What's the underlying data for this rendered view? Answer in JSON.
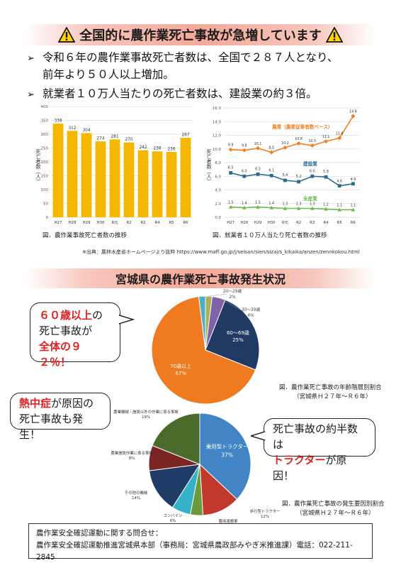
{
  "header1": {
    "title": "全国的に農作業死亡事故が急増しています"
  },
  "bullets": [
    "令和６年の農作業事故死亡者数は、全国で２８７人となり、",
    "前年より５０人以上増加。",
    "就業者１０万人当たりの死亡者数は、建設業の約３倍。"
  ],
  "bullet_marker": "➢",
  "header2": {
    "title": "宮城県の農作業死亡事故発生状況"
  },
  "captions": {
    "bar": "図．農作業事故死亡者数の推移",
    "line": "図．就業者１０万人当たり死亡者数の推移",
    "source": "※出典：農林水産省ホームページより抜粋 https://www.maff.go.jp/j/seisan/sien/sizai/s_kikaika/anzen/zennkokou.html",
    "pie_age": [
      "図．農作業死亡事故の年齢階層別割合",
      "（宮城県Ｈ２７年～Ｒ６年）"
    ],
    "pie_cause": [
      "図．農作業死亡事故の発生要因別割合",
      "（宮城県Ｈ２７年～Ｒ６年）"
    ]
  },
  "bubbles": {
    "age": {
      "l1_red": "６０歳以上",
      "l1_tail": "の",
      "l2": "死亡事故が",
      "l3_red": "全体の９２％！"
    },
    "heat": {
      "l1_red": "熱中症",
      "l1_tail": "が原因の",
      "l2": "死亡事故も発生！"
    },
    "tractor": {
      "l1": "死亡事故の約半数は",
      "l2_red": "トラクター",
      "l2_tail": "が原因！"
    }
  },
  "contact": {
    "line1": "農作業安全確認運動に関する問合せ：",
    "line2": "農作業安全確認運動推進宮城県本部（事務局：宮城県農政部みやぎ米推進課）電話：022-211-2845"
  },
  "colors": {
    "bar": "#f5b800",
    "agri": "#ef8122",
    "construction": "#2c6b8f",
    "all": "#6dbb4a",
    "red": "#e02020"
  },
  "chart_data": [
    {
      "type": "bar",
      "categories": [
        "H27",
        "H28",
        "H29",
        "H30",
        "R元",
        "R2",
        "R3",
        "R4",
        "R5",
        "R6"
      ],
      "values": [
        338,
        312,
        304,
        274,
        281,
        270,
        242,
        238,
        236,
        287
      ],
      "ylabel": "死亡者数（人）",
      "ylim": [
        0,
        400
      ],
      "yticks": [
        0,
        50,
        100,
        150,
        200,
        250,
        300,
        350,
        400
      ],
      "grid": true
    },
    {
      "type": "line",
      "x": [
        "H27",
        "H28",
        "H29",
        "H30",
        "R元",
        "R2",
        "R3",
        "R4",
        "R5",
        "R6"
      ],
      "ylabel": "死亡者数（人）",
      "ylim": [
        0,
        16
      ],
      "yticks": [
        0.0,
        2.0,
        4.0,
        6.0,
        8.0,
        10.0,
        12.0,
        14.0,
        16.0
      ],
      "grid": true,
      "series": [
        {
          "name": "農業（農業従事者数ベース）",
          "values": [
            9.9,
            9.8,
            10.1,
            9.5,
            10.2,
            10.8,
            10.5,
            11.1,
            11.6,
            14.8
          ]
        },
        {
          "name": "建設業",
          "values": [
            6.5,
            6.0,
            6.3,
            6.1,
            5.4,
            5.2,
            6.0,
            5.9,
            4.6,
            4.9
          ]
        },
        {
          "name": "全産業",
          "values": [
            1.5,
            1.4,
            1.5,
            1.4,
            1.3,
            1.3,
            1.3,
            1.2,
            1.1,
            1.1
          ]
        }
      ]
    },
    {
      "type": "pie",
      "slices": [
        {
          "label": "20～29歳",
          "value": 2,
          "display": "2%",
          "color": "#a9b05a"
        },
        {
          "label": "30～39歳",
          "value": 4,
          "display": "4%",
          "color": "#7f63a8"
        },
        {
          "label": "60～69歳",
          "value": 25,
          "display": "25%",
          "color": "#203a63"
        },
        {
          "label": "70歳以上",
          "value": 67,
          "display": "67%",
          "color": "#ef7a1f"
        },
        {
          "label": "",
          "value": 2,
          "display": "",
          "color": "#4bafc9"
        }
      ]
    },
    {
      "type": "pie",
      "slices": [
        {
          "label": "乗用型トラクター",
          "value": 37,
          "display": "37%",
          "color": "#4285c4"
        },
        {
          "label": "歩行型トラクター",
          "value": 12,
          "display": "12%",
          "color": "#c0392b"
        },
        {
          "label": "農用運搬車",
          "value": 4,
          "display": "4%",
          "color": "#6c9a3a"
        },
        {
          "label": "コンバイン",
          "value": 6,
          "display": "6%",
          "color": "#36b2c8"
        },
        {
          "label": "その他の機械",
          "value": 14,
          "display": "14%",
          "color": "#1e3c66"
        },
        {
          "label": "農業施設作業に係る事故",
          "value": 8,
          "display": "8%",
          "color": "#7b2525"
        },
        {
          "label": "農業機械・施設以外の作業に係る事故",
          "value": 19,
          "display": "19%",
          "color": "#4a6a2c"
        }
      ]
    }
  ]
}
